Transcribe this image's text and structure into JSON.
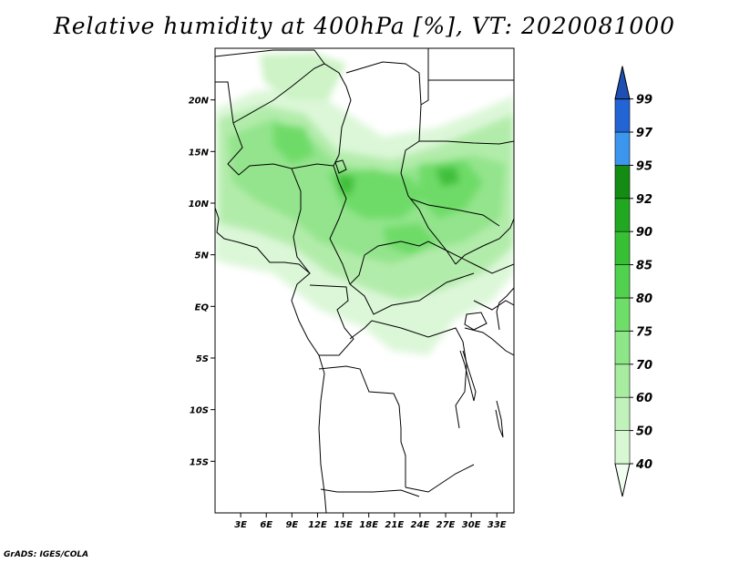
{
  "title": "Relative humidity at 400hPa [%], VT: 2020081000",
  "credit": "GrADS: IGES/COLA",
  "map": {
    "lon_range": [
      0,
      35
    ],
    "lat_range": [
      -20,
      25
    ],
    "lat_labels": [
      {
        "lat": 20,
        "label": "20N"
      },
      {
        "lat": 15,
        "label": "15N"
      },
      {
        "lat": 10,
        "label": "10N"
      },
      {
        "lat": 5,
        "label": "5N"
      },
      {
        "lat": 0,
        "label": "EQ"
      },
      {
        "lat": -5,
        "label": "5S"
      },
      {
        "lat": -10,
        "label": "10S"
      },
      {
        "lat": -15,
        "label": "15S"
      }
    ],
    "lon_labels": [
      {
        "lon": 3,
        "label": "3E"
      },
      {
        "lon": 6,
        "label": "6E"
      },
      {
        "lon": 9,
        "label": "9E"
      },
      {
        "lon": 12,
        "label": "12E"
      },
      {
        "lon": 15,
        "label": "15E"
      },
      {
        "lon": 18,
        "label": "18E"
      },
      {
        "lon": 21,
        "label": "21E"
      },
      {
        "lon": 24,
        "label": "24E"
      },
      {
        "lon": 27,
        "label": "27E"
      },
      {
        "lon": 30,
        "label": "30E"
      },
      {
        "lon": 33,
        "label": "33E"
      }
    ]
  },
  "colorbar": {
    "levels": [
      "40",
      "50",
      "60",
      "70",
      "75",
      "80",
      "85",
      "90",
      "92",
      "95",
      "97",
      "99"
    ],
    "colors": [
      "#f0fff0",
      "#d8f8d4",
      "#c2f2bc",
      "#a8eca0",
      "#8de687",
      "#6fde69",
      "#52d14e",
      "#38c034",
      "#22a820",
      "#148c14",
      "#3c96ee",
      "#2264d4",
      "#1e50b4"
    ]
  }
}
